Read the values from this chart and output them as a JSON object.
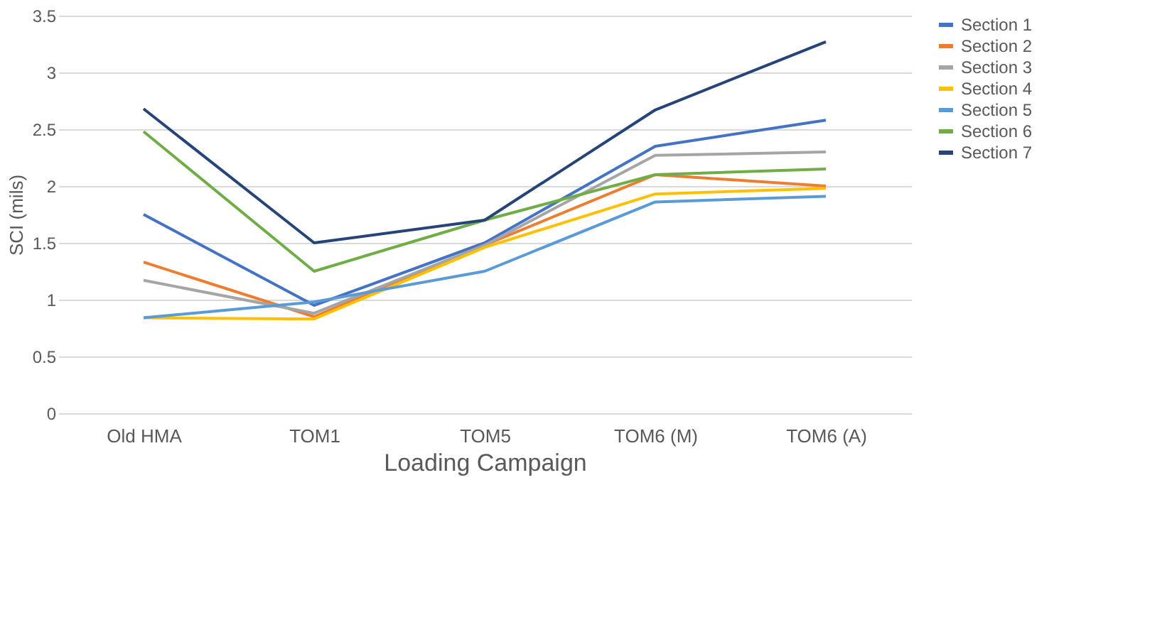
{
  "chart_data": {
    "type": "line",
    "xlabel": "Loading Campaign",
    "ylabel": "SCI (mils)",
    "categories": [
      "Old HMA",
      "TOM1",
      "TOM5",
      "TOM6 (M)",
      "TOM6 (A)"
    ],
    "series": [
      {
        "name": "Section 1",
        "color": "#4472c4",
        "values": [
          1.75,
          0.95,
          1.5,
          2.35,
          2.58
        ]
      },
      {
        "name": "Section 2",
        "color": "#ed7d31",
        "values": [
          1.33,
          0.85,
          1.48,
          2.1,
          2.0
        ]
      },
      {
        "name": "Section 3",
        "color": "#a5a5a5",
        "values": [
          1.17,
          0.88,
          1.48,
          2.27,
          2.3
        ]
      },
      {
        "name": "Section 4",
        "color": "#ffc000",
        "values": [
          0.84,
          0.83,
          1.46,
          1.93,
          1.98
        ]
      },
      {
        "name": "Section 5",
        "color": "#5b9bd5",
        "values": [
          0.84,
          0.98,
          1.25,
          1.86,
          1.91
        ]
      },
      {
        "name": "Section 6",
        "color": "#70ad47",
        "values": [
          2.48,
          1.25,
          1.7,
          2.1,
          2.15
        ]
      },
      {
        "name": "Section 7",
        "color": "#264478",
        "values": [
          2.68,
          1.5,
          1.7,
          2.67,
          3.27
        ]
      }
    ],
    "ylim": [
      0,
      3.5
    ],
    "yticks": [
      0,
      0.5,
      1,
      1.5,
      2,
      2.5,
      3,
      3.5
    ],
    "grid": "y",
    "legend": "right",
    "marker": "none",
    "line_style": "solid"
  }
}
